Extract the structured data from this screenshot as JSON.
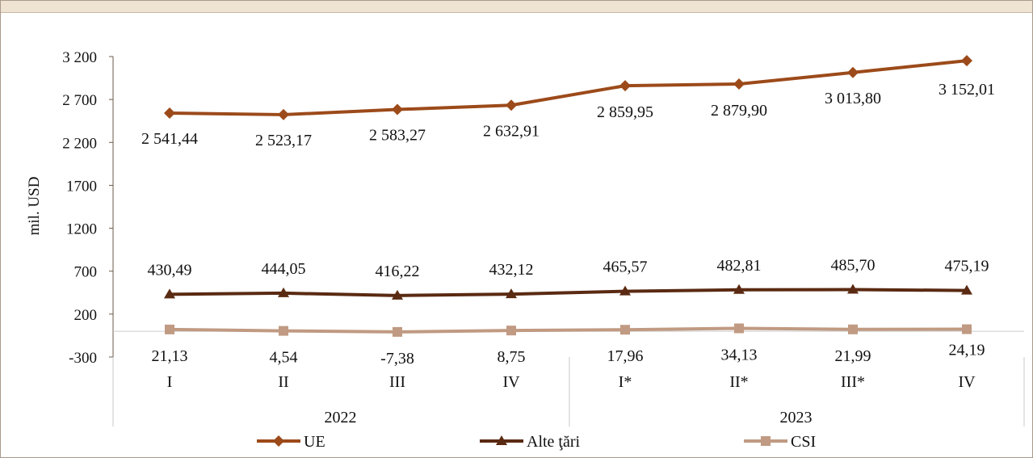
{
  "chart_data": {
    "type": "line",
    "ylabel": "mil. USD",
    "ylim": [
      -300,
      3200
    ],
    "yticks": [
      -300,
      200,
      700,
      1200,
      1700,
      2200,
      2700,
      3200
    ],
    "ytick_labels": [
      "-300",
      "200",
      "700",
      "1200",
      "1700",
      "2 200",
      "2 700",
      "3 200"
    ],
    "categories": [
      "I",
      "II",
      "III",
      "IV",
      "I*",
      "II*",
      "III*",
      "IV"
    ],
    "years": [
      {
        "label": "2022",
        "span": [
          0,
          3
        ]
      },
      {
        "label": "2023",
        "span": [
          4,
          7
        ]
      }
    ],
    "legend_position": "bottom",
    "series": [
      {
        "name": "UE",
        "color": "#9c4a1a",
        "marker": "diamond",
        "values": [
          2541.44,
          2523.17,
          2583.27,
          2632.91,
          2859.95,
          2879.9,
          3013.8,
          3152.01
        ],
        "labels": [
          "2 541,44",
          "2 523,17",
          "2 583,27",
          "2 632,91",
          "2 859,95",
          "2 879,90",
          "3 013,80",
          "3 152,01"
        ]
      },
      {
        "name": "Alte ţări",
        "color": "#5a2a12",
        "marker": "triangle",
        "values": [
          430.49,
          444.05,
          416.22,
          432.12,
          465.57,
          482.81,
          485.7,
          475.19
        ],
        "labels": [
          "430,49",
          "444,05",
          "416,22",
          "432,12",
          "465,57",
          "482,81",
          "485,70",
          "475,19"
        ]
      },
      {
        "name": "CSI",
        "color": "#c09a82",
        "marker": "square",
        "values": [
          21.13,
          4.54,
          -7.38,
          8.75,
          17.96,
          34.13,
          21.99,
          24.19
        ],
        "labels": [
          "21,13",
          "4,54",
          "-7,38",
          "8,75",
          "17,96",
          "34,13",
          "21,99",
          "24,19"
        ]
      }
    ]
  }
}
